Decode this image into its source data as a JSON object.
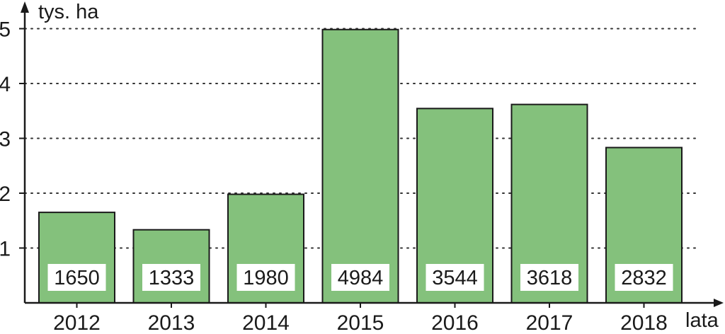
{
  "chart_data": {
    "type": "bar",
    "title": "",
    "ylabel": "tys. ha",
    "xlabel": "lata",
    "categories": [
      "2012",
      "2013",
      "2014",
      "2015",
      "2016",
      "2017",
      "2018"
    ],
    "values": [
      1650,
      1333,
      1980,
      4984,
      3544,
      3618,
      2832
    ],
    "value_labels": [
      "1650",
      "1333",
      "1980",
      "4984",
      "3544",
      "3618",
      "2832"
    ],
    "y_ticks": [
      {
        "value": 1,
        "label": "1"
      },
      {
        "value": 2,
        "label": "2"
      },
      {
        "value": 3,
        "label": "3"
      },
      {
        "value": 4,
        "label": "4"
      },
      {
        "value": 5,
        "label": "5"
      }
    ],
    "y_unit_factor": 1000,
    "ylim": [
      0,
      5
    ],
    "grid": "dotted-horizontal",
    "legend": "none",
    "colors": {
      "bar_fill": "#84c17c",
      "bar_stroke": "#1a1a1a",
      "label_box": "#ffffff",
      "axis": "#1a1a1a",
      "grid": "#333333"
    }
  }
}
